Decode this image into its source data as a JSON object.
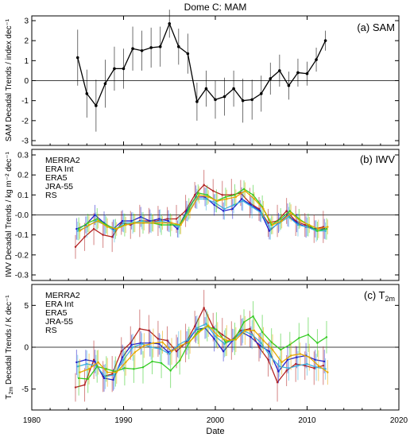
{
  "figure_title": "Dome C: MAM",
  "x_axis_label": "Date",
  "x_ticks": [
    "1980",
    "1990",
    "2000",
    "2010",
    "2020"
  ],
  "colors": {
    "MERRA2": "#b22222",
    "ERA Int": "#1f1fcc",
    "ERA5": "#3ab0e0",
    "JRA-55": "#33cc22",
    "RS": "#e6a800",
    "black": "#000000"
  },
  "chart_data": [
    {
      "type": "line",
      "panel_label": "(a) SAM",
      "ylabel": "SAM Decadal Trends / index dec⁻¹",
      "xlim": [
        1980,
        2020
      ],
      "ylim": [
        -3,
        3
      ],
      "yticks": [
        "-3",
        "-2",
        "-1",
        "0",
        "1",
        "2",
        "3"
      ],
      "x": [
        1985,
        1986,
        1987,
        1988,
        1989,
        1990,
        1991,
        1992,
        1993,
        1994,
        1995,
        1996,
        1997,
        1998,
        1999,
        2000,
        2001,
        2002,
        2003,
        2004,
        2005,
        2006,
        2007,
        2008,
        2009,
        2010,
        2011,
        2012
      ],
      "series": [
        {
          "name": "",
          "color": "#000000",
          "values": [
            1.15,
            -0.65,
            -1.25,
            -0.15,
            0.6,
            0.6,
            1.6,
            1.5,
            1.65,
            1.7,
            2.85,
            1.7,
            1.35,
            -1.05,
            -0.4,
            -0.95,
            -0.8,
            -0.4,
            -1.0,
            -0.95,
            -0.65,
            0.1,
            0.5,
            -0.25,
            0.4,
            0.35,
            1.05,
            2.0
          ],
          "err": [
            1.4,
            1.2,
            1.3,
            1.2,
            1.1,
            1.0,
            1.1,
            1.0,
            1.0,
            1.0,
            0.7,
            0.9,
            1.0,
            0.95,
            0.9,
            0.95,
            0.95,
            0.9,
            1.1,
            1.0,
            0.9,
            0.8,
            0.8,
            0.7,
            0.7,
            0.6,
            0.6,
            0.5
          ]
        }
      ]
    },
    {
      "type": "line",
      "panel_label": "(b) IWV",
      "ylabel": "IWV Decadal Trends / kg m⁻² dec⁻¹",
      "xlim": [
        1980,
        2020
      ],
      "ylim": [
        -0.3,
        0.3
      ],
      "yticks": [
        "-0.3",
        "-0.2",
        "-0.1",
        "-0.0",
        "0.1",
        "0.2",
        "0.3"
      ],
      "legend": [
        "MERRA2",
        "ERA Int",
        "ERA5",
        "JRA-55",
        "RS"
      ],
      "x": [
        1985,
        1986,
        1987,
        1988,
        1989,
        1990,
        1991,
        1992,
        1993,
        1994,
        1995,
        1996,
        1997,
        1998,
        1999,
        2000,
        2001,
        2002,
        2003,
        2004,
        2005,
        2006,
        2007,
        2008,
        2009,
        2010,
        2011,
        2012
      ],
      "series": [
        {
          "name": "MERRA2",
          "color": "#b22222",
          "err_width": 0.07,
          "values": [
            -0.16,
            -0.11,
            -0.07,
            -0.1,
            -0.11,
            -0.04,
            -0.05,
            -0.03,
            -0.03,
            -0.03,
            -0.02,
            -0.02,
            0.02,
            0.1,
            0.15,
            0.12,
            0.1,
            0.1,
            0.11,
            0.06,
            0.03,
            -0.04,
            -0.03,
            0.02,
            -0.03,
            -0.05,
            -0.07,
            -0.06
          ]
        },
        {
          "name": "ERA Int",
          "color": "#1f1fcc",
          "err_width": 0.05,
          "values": [
            -0.07,
            -0.05,
            0.0,
            -0.04,
            -0.07,
            -0.03,
            -0.03,
            -0.01,
            -0.03,
            -0.02,
            -0.03,
            -0.07,
            0.02,
            0.09,
            0.09,
            0.05,
            0.02,
            0.03,
            0.08,
            0.05,
            0.02,
            -0.08,
            -0.04,
            0.0,
            -0.04,
            -0.06,
            -0.07,
            -0.07
          ]
        },
        {
          "name": "ERA5",
          "color": "#3ab0e0",
          "err_width": 0.05,
          "values": [
            -0.08,
            -0.06,
            -0.03,
            -0.05,
            -0.08,
            -0.04,
            -0.04,
            -0.03,
            -0.04,
            -0.03,
            -0.04,
            -0.06,
            0.01,
            0.08,
            0.08,
            0.06,
            0.03,
            0.05,
            0.07,
            0.04,
            0.01,
            -0.07,
            -0.04,
            -0.01,
            -0.05,
            -0.06,
            -0.08,
            -0.08
          ]
        },
        {
          "name": "JRA-55",
          "color": "#33cc22",
          "err_width": 0.05,
          "values": [
            -0.07,
            -0.04,
            -0.02,
            -0.05,
            -0.07,
            -0.05,
            -0.04,
            -0.04,
            -0.04,
            -0.05,
            -0.05,
            -0.05,
            0.03,
            0.11,
            0.1,
            0.07,
            0.09,
            0.1,
            0.13,
            0.1,
            0.04,
            -0.05,
            -0.02,
            0.02,
            -0.02,
            -0.05,
            -0.08,
            -0.07
          ]
        },
        {
          "name": "RS",
          "color": "#e6a800",
          "err_width": 0.04,
          "values": [
            -0.08,
            -0.05,
            -0.03,
            -0.06,
            -0.07,
            -0.05,
            -0.04,
            -0.04,
            -0.04,
            -0.04,
            -0.04,
            -0.05,
            0.02,
            0.1,
            0.09,
            0.07,
            0.08,
            0.09,
            0.12,
            0.08,
            0.03,
            -0.05,
            -0.03,
            0.01,
            -0.03,
            -0.05,
            -0.07,
            -0.06
          ]
        }
      ]
    },
    {
      "type": "line",
      "panel_label": "(c) T",
      "panel_label_sub": "2m",
      "ylabel": "T",
      "ylabel_sub": "2m",
      "ylabel_rest": " Decadal Trends / K dec⁻¹",
      "xlim": [
        1980,
        2020
      ],
      "ylim": [
        -7.5,
        7.5
      ],
      "yticks": [
        "-5",
        "0",
        "5"
      ],
      "ytick_values": [
        -5,
        0,
        5
      ],
      "legend": [
        "MERRA2",
        "ERA Int",
        "ERA5",
        "JRA-55",
        "RS"
      ],
      "x": [
        1985,
        1986,
        1987,
        1988,
        1989,
        1990,
        1991,
        1992,
        1993,
        1994,
        1995,
        1996,
        1997,
        1998,
        1999,
        2000,
        2001,
        2002,
        2003,
        2004,
        2005,
        2006,
        2007,
        2008,
        2009,
        2010,
        2011,
        2012
      ],
      "series": [
        {
          "name": "MERRA2",
          "color": "#b22222",
          "err_width": 2.0,
          "values": [
            -4.8,
            -4.5,
            -1.5,
            -3.5,
            -3.2,
            -0.5,
            0.5,
            2.2,
            2.0,
            1.0,
            0.8,
            -0.5,
            0.5,
            2.5,
            4.7,
            2.4,
            1.5,
            0.8,
            2.0,
            2.2,
            0.0,
            -1.5,
            -4.2,
            -2.8,
            -2.0,
            -2.2,
            -2.5,
            -2.2
          ]
        },
        {
          "name": "ERA Int",
          "color": "#1f1fcc",
          "err_width": 1.4,
          "values": [
            -1.8,
            -1.5,
            -1.7,
            -3.7,
            -3.9,
            -1.2,
            0.3,
            0.5,
            0.5,
            0.4,
            -0.6,
            0.0,
            0.5,
            2.1,
            2.3,
            1.0,
            -0.5,
            0.8,
            1.8,
            1.2,
            0.2,
            -0.5,
            -2.9,
            -1.5,
            -1.2,
            -1.0,
            -1.5,
            -1.7
          ]
        },
        {
          "name": "ERA5",
          "color": "#3ab0e0",
          "err_width": 1.5,
          "values": [
            -2.3,
            -2.0,
            -2.2,
            -3.5,
            -3.3,
            -1.5,
            0.0,
            0.4,
            0.0,
            -0.2,
            -0.8,
            0.3,
            0.9,
            2.3,
            2.8,
            1.3,
            0.4,
            0.9,
            2.0,
            1.5,
            0.5,
            -1.1,
            -2.3,
            -2.5,
            -2.2,
            -2.0,
            -2.4,
            -2.6
          ]
        },
        {
          "name": "JRA-55",
          "color": "#33cc22",
          "err_width": 1.8,
          "values": [
            -3.7,
            -3.8,
            -2.3,
            -2.6,
            -2.9,
            -2.5,
            -2.6,
            -2.4,
            -1.7,
            -1.9,
            -2.8,
            -1.6,
            0.5,
            1.9,
            2.5,
            2.1,
            0.6,
            1.0,
            3.0,
            3.7,
            1.8,
            0.6,
            -0.3,
            0.3,
            1.1,
            1.5,
            0.5,
            1.2
          ]
        },
        {
          "name": "RS",
          "color": "#e6a800",
          "err_width": 1.6,
          "values": [
            -3.0,
            -2.6,
            -1.8,
            -3.0,
            -3.0,
            -1.8,
            -0.6,
            0.2,
            0.5,
            0.6,
            -0.5,
            0.2,
            0.7,
            1.8,
            2.6,
            1.4,
            0.8,
            0.9,
            2.0,
            2.0,
            0.8,
            -0.3,
            -1.8,
            -1.0,
            -0.8,
            -1.2,
            -2.2,
            -3.0
          ]
        }
      ]
    }
  ]
}
